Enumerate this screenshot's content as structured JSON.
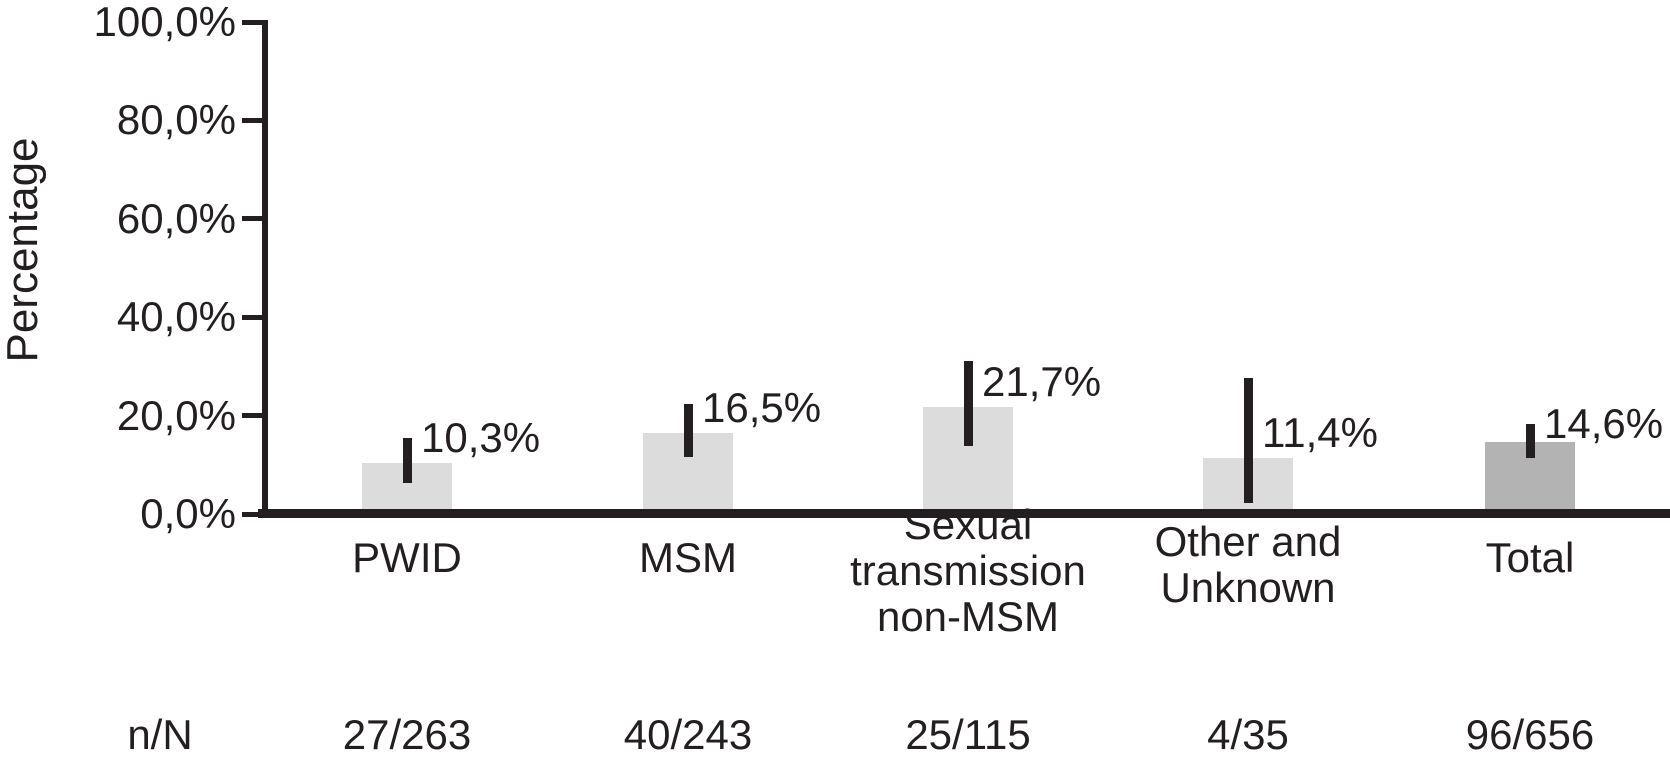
{
  "chart_data": {
    "type": "bar",
    "title": "",
    "xlabel": "",
    "ylabel": "Percentage",
    "ylim": [
      0,
      100
    ],
    "grid": false,
    "legend": null,
    "yticks": [
      {
        "value": 0,
        "label": "0,0%"
      },
      {
        "value": 20,
        "label": "20,0%"
      },
      {
        "value": 40,
        "label": "40,0%"
      },
      {
        "value": 60,
        "label": "60,0%"
      },
      {
        "value": 80,
        "label": "80,0%"
      },
      {
        "value": 100,
        "label": "100,0%"
      }
    ],
    "categories": [
      "PWID",
      "MSM",
      "Sexual\ntransmission\nnon-MSM",
      "Other and\nUnknown",
      "Total"
    ],
    "values": [
      10.3,
      16.5,
      21.7,
      11.4,
      14.6
    ],
    "value_labels": [
      "10,3%",
      "16,5%",
      "21,7%",
      "11,4%",
      "14,6%"
    ],
    "error_bars": [
      {
        "low": 6.3,
        "high": 15.4
      },
      {
        "low": 11.6,
        "high": 22.4
      },
      {
        "low": 13.8,
        "high": 31.1
      },
      {
        "low": 2.2,
        "high": 27.6
      },
      {
        "low": 11.4,
        "high": 18.3
      }
    ],
    "n_over_N_label": "n/N",
    "n_over_N": [
      "27/263",
      "40/243",
      "25/115",
      "4/35",
      "96/656"
    ],
    "bar_colors": [
      "#dcdcdc",
      "#dcdcdc",
      "#dcdcdc",
      "#dcdcdc",
      "#b3b3b3"
    ],
    "error_bar_color": "#231f20",
    "ink_color": "#231f20"
  }
}
